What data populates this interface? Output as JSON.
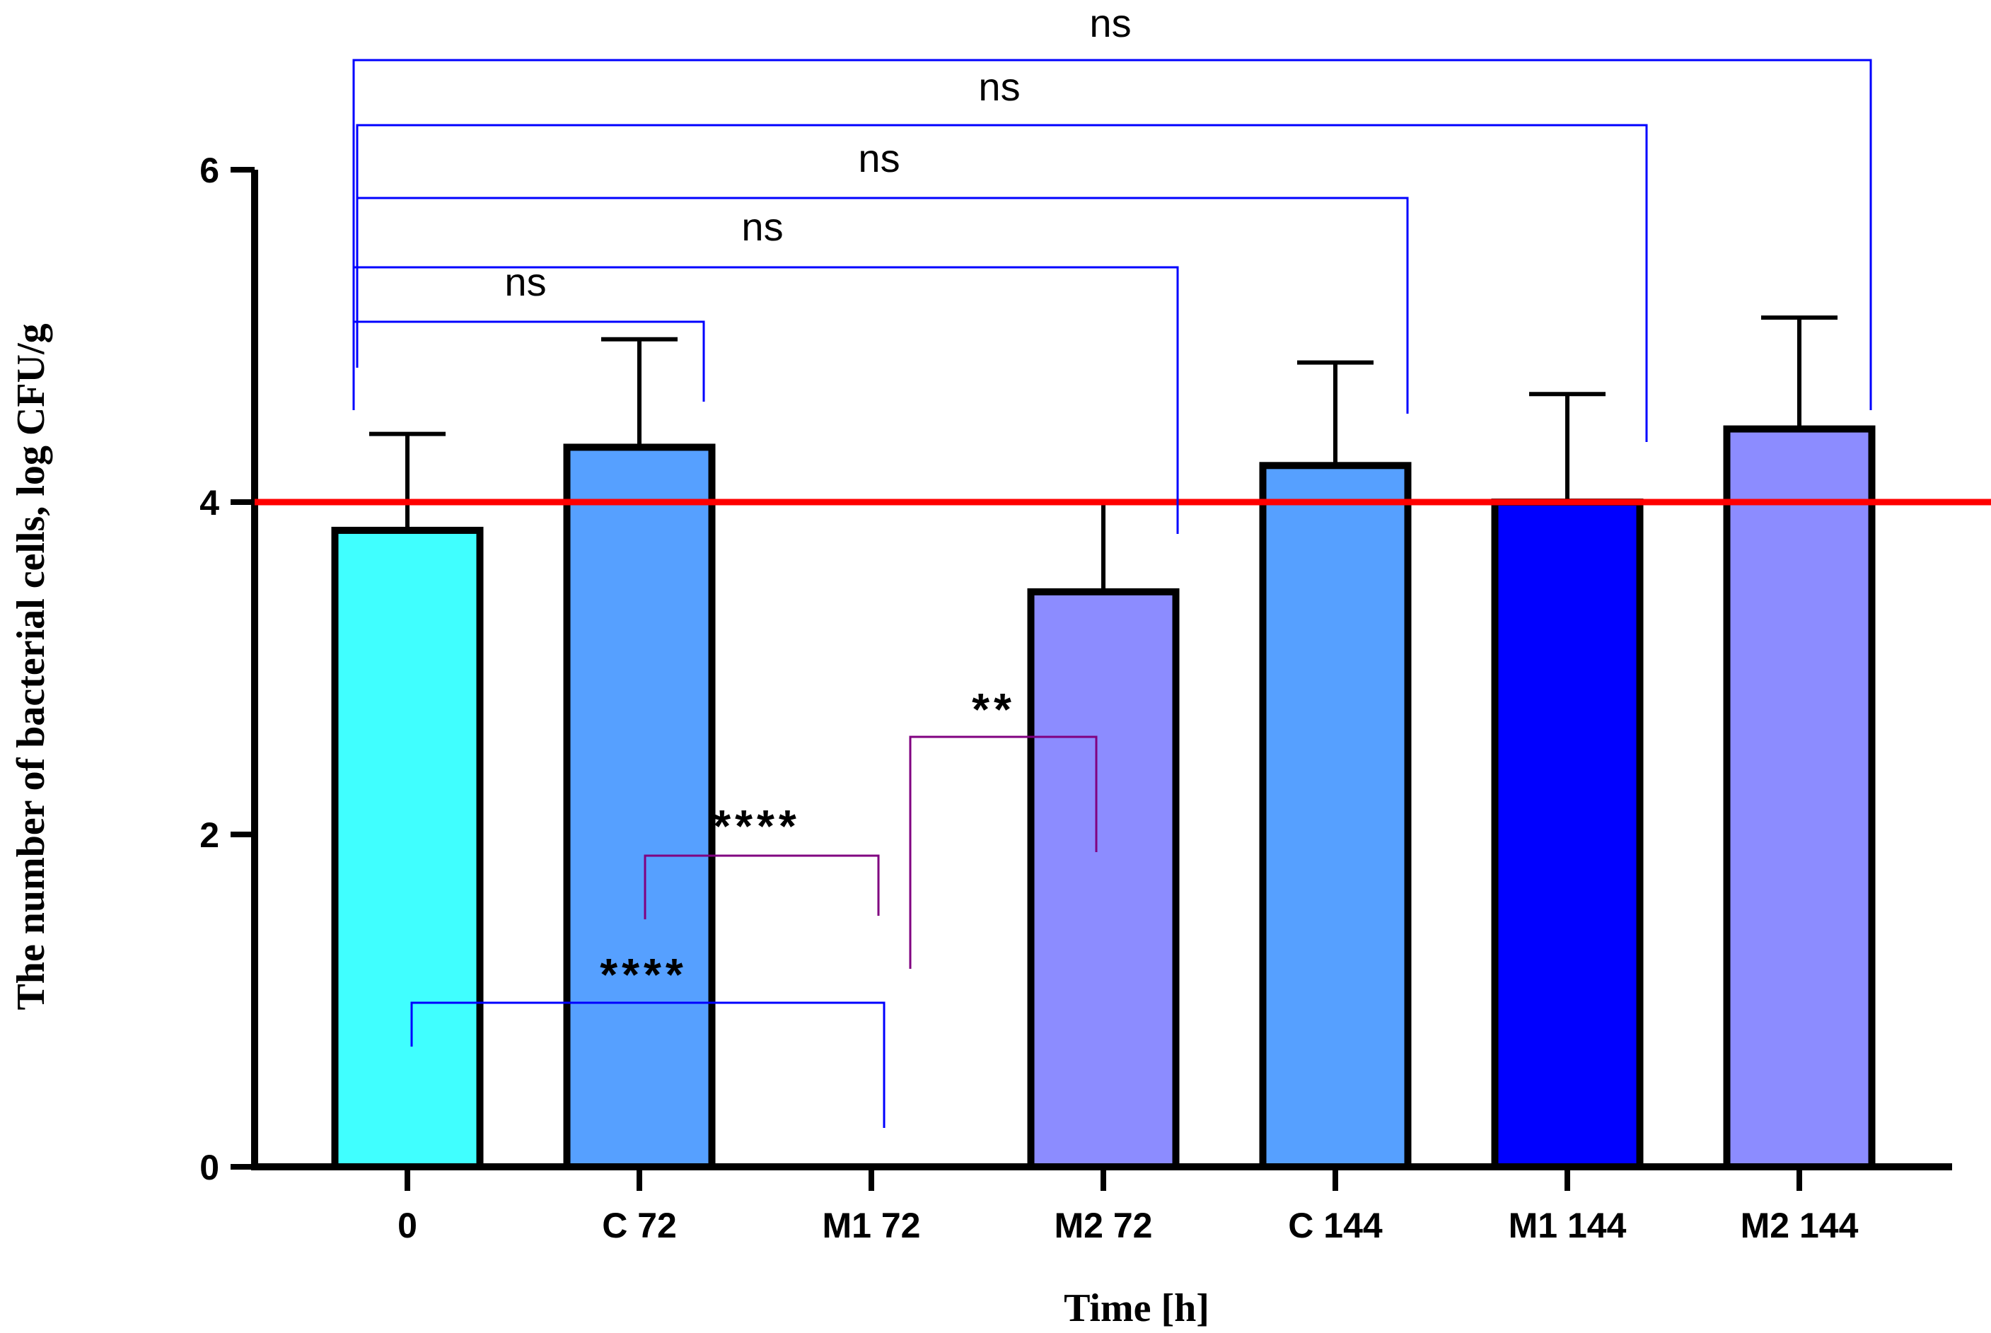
{
  "chart_data": {
    "type": "bar",
    "xlabel": "Time [h]",
    "ylabel": "The number of bacterial cells, log CFU/g",
    "ylim": [
      0,
      6
    ],
    "yticks": [
      0,
      2,
      4,
      6
    ],
    "categories": [
      "0",
      "C 72",
      "M1 72",
      "M2 72",
      "C 144",
      "M1 144",
      "M2 144"
    ],
    "values": [
      3.83,
      4.33,
      0,
      3.46,
      4.22,
      4.0,
      4.44
    ],
    "errors": [
      0.58,
      0.65,
      0,
      0.54,
      0.62,
      0.65,
      0.67
    ],
    "bar_colors": [
      "#40ffff",
      "#56a0ff",
      "#56a0ff",
      "#8c8cff",
      "#56a0ff",
      "#0000ff",
      "#8c8cff"
    ],
    "reference_line": {
      "y": 4.0,
      "color": "#ff0000"
    },
    "comparisons": [
      {
        "from": "0",
        "to": "M2 144",
        "label": "ns",
        "color": "#0000ff"
      },
      {
        "from": "0",
        "to": "M1 144",
        "label": "ns",
        "color": "#0000ff"
      },
      {
        "from": "0",
        "to": "C 144",
        "label": "ns",
        "color": "#0000ff"
      },
      {
        "from": "0",
        "to": "M2 72",
        "label": "ns",
        "color": "#0000ff"
      },
      {
        "from": "0",
        "to": "C 72",
        "label": "ns",
        "color": "#0000ff"
      },
      {
        "from": "M1 72",
        "to": "M2 72",
        "label": "**",
        "color": "#800080"
      },
      {
        "from": "C 72",
        "to": "M1 72",
        "label": "****",
        "color": "#800080"
      },
      {
        "from": "0",
        "to": "M1 72",
        "label": "****",
        "color": "#0000ff"
      }
    ]
  }
}
